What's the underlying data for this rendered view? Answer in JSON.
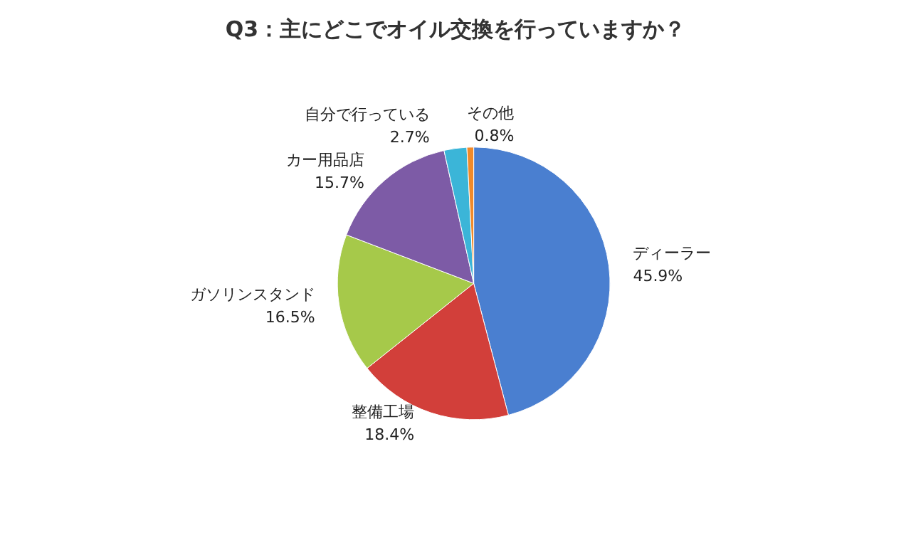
{
  "chart_data": {
    "type": "pie",
    "title": "Q3：主にどこでオイル交換を行っていますか？",
    "categories": [
      "ディーラー",
      "整備工場",
      "ガソリンスタンド",
      "カー用品店",
      "自分で行っている",
      "その他"
    ],
    "values": [
      45.9,
      18.4,
      16.5,
      15.7,
      2.7,
      0.8
    ],
    "value_labels": [
      "45.9%",
      "18.4%",
      "16.5%",
      "15.7%",
      "2.7%",
      "0.8%"
    ],
    "colors": [
      "#4a7fd0",
      "#d23f3a",
      "#a6c94a",
      "#7d5ba6",
      "#3bb5d8",
      "#f08a2a"
    ],
    "legend": false
  }
}
